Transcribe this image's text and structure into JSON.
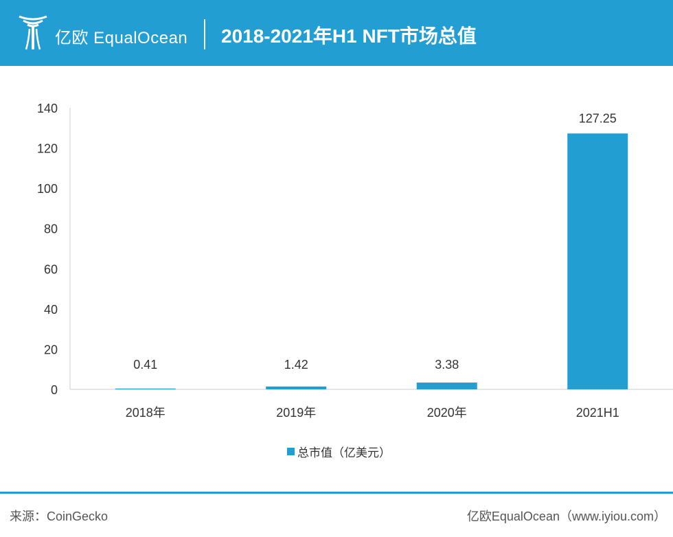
{
  "header": {
    "brand": "亿欧 EqualOcean",
    "title": "2018-2021年H1 NFT市场总值"
  },
  "chart_data": {
    "type": "bar",
    "categories": [
      "2018年",
      "2019年",
      "2020年",
      "2021H1"
    ],
    "series": [
      {
        "name": "总市值（亿美元）",
        "values": [
          0.41,
          1.42,
          3.38,
          127.25
        ]
      }
    ],
    "data_labels": [
      "0.41",
      "1.42",
      "3.38",
      "127.25"
    ],
    "ylim": [
      0,
      140
    ],
    "yticks": [
      0,
      20,
      40,
      60,
      80,
      100,
      120,
      140
    ],
    "grid": false,
    "legend_position": "bottom-center",
    "bar_color": "#229ED3"
  },
  "legend": {
    "label": "总市值（亿美元）"
  },
  "footer": {
    "source": "来源：CoinGecko",
    "credit": "亿欧EqualOcean（www.iyiou.com）"
  },
  "colors": {
    "brand": "#229ED3",
    "axis": "#cccccc",
    "text": "#333333"
  }
}
